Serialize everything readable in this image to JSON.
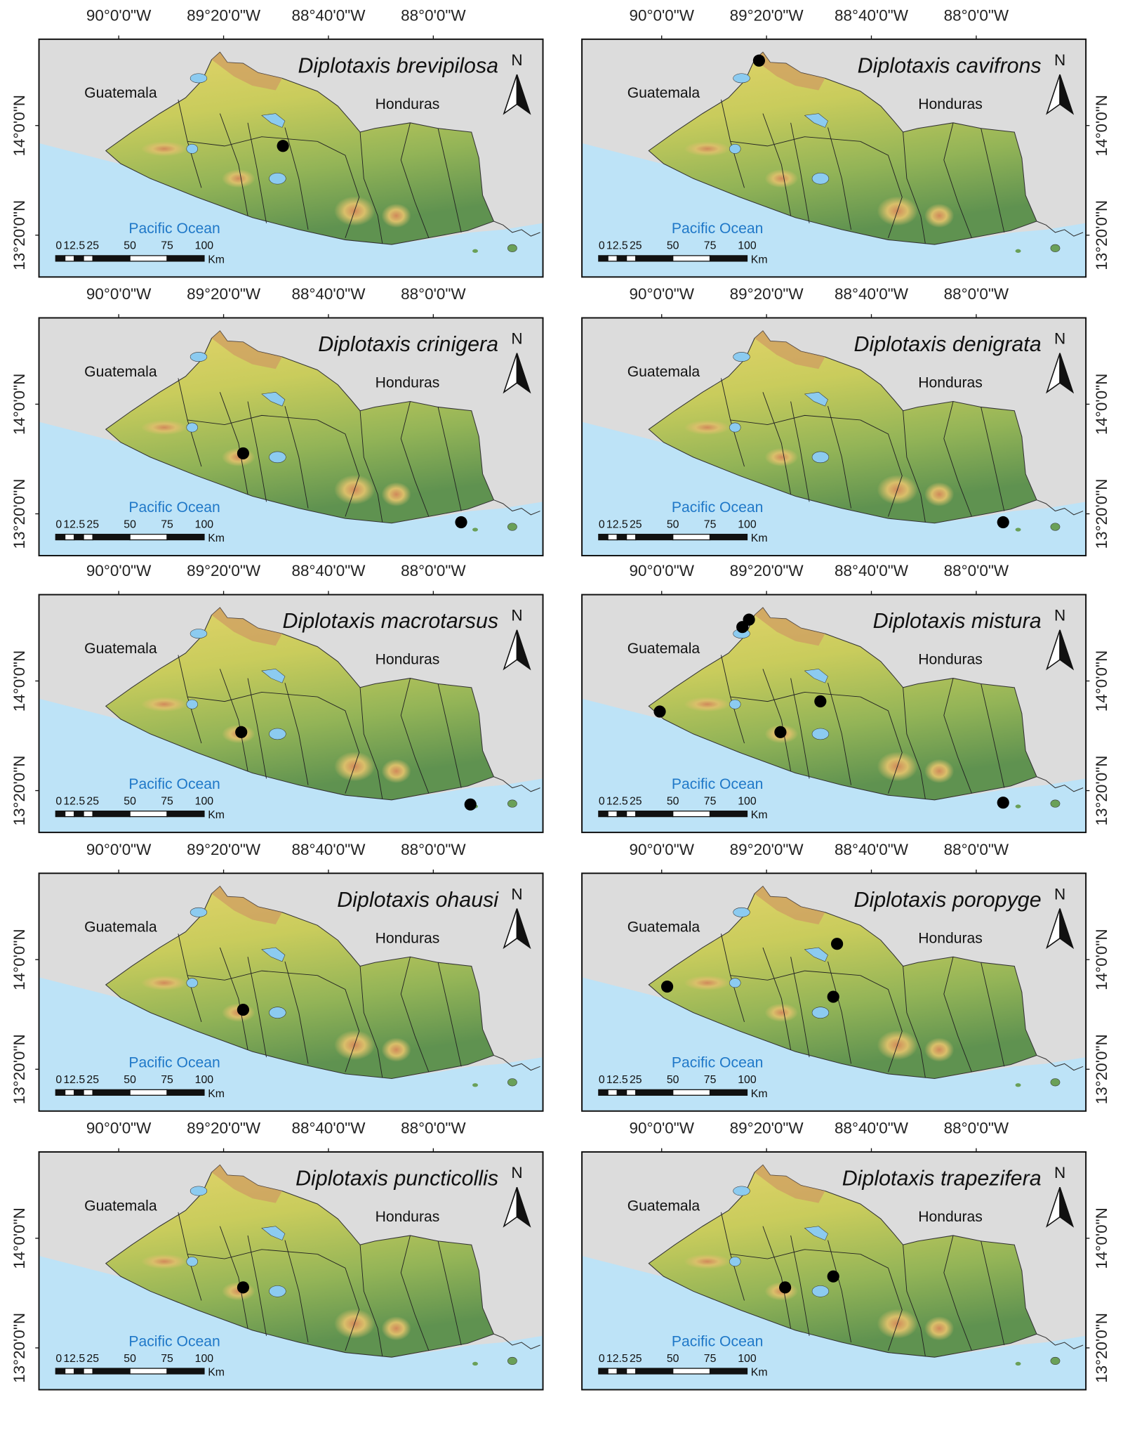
{
  "maps": {
    "lonlim": [
      -90.507,
      -87.303
    ],
    "latlim": [
      13.079,
      14.525
    ],
    "lon_ticks": [
      {
        "value": -90,
        "label": "90°0'0\"W"
      },
      {
        "value": -89.3333,
        "label": "89°20'0\"W"
      },
      {
        "value": -88.6667,
        "label": "88°40'0\"W"
      },
      {
        "value": -88,
        "label": "88°0'0\"W"
      }
    ],
    "lat_ticks": [
      {
        "value": 14,
        "label": "14°0'0\"N"
      },
      {
        "value": 13.3333,
        "label": "13°20'0\"N"
      }
    ],
    "scale_bar": {
      "values": [
        0,
        12.5,
        25,
        50,
        75,
        100
      ],
      "unit": "Km"
    },
    "north": "N",
    "labels": {
      "guatemala": "Guatemala",
      "honduras": "Honduras",
      "ocean": "Pacific Ocean"
    },
    "panels": [
      {
        "title": "Diplotaxis brevipilosa",
        "points": [
          {
            "lon": -88.956,
            "lat": 13.876
          }
        ]
      },
      {
        "title": "Diplotaxis cavifrons",
        "points": [
          {
            "lon": -89.381,
            "lat": 14.395
          }
        ]
      },
      {
        "title": "Diplotaxis crinigera",
        "points": [
          {
            "lon": -89.209,
            "lat": 13.701
          },
          {
            "lon": -87.823,
            "lat": 13.282
          }
        ]
      },
      {
        "title": "Diplotaxis denigrata",
        "points": [
          {
            "lon": -87.829,
            "lat": 13.282
          }
        ]
      },
      {
        "title": "Diplotaxis macrotarsus",
        "points": [
          {
            "lon": -89.221,
            "lat": 13.689
          },
          {
            "lon": -87.764,
            "lat": 13.249
          }
        ]
      },
      {
        "title": "Diplotaxis mistura",
        "points": [
          {
            "lon": -89.445,
            "lat": 14.373
          },
          {
            "lon": -89.487,
            "lat": 14.328
          },
          {
            "lon": -90.012,
            "lat": 13.814
          },
          {
            "lon": -88.991,
            "lat": 13.876
          },
          {
            "lon": -89.245,
            "lat": 13.689
          },
          {
            "lon": -87.829,
            "lat": 13.26
          }
        ]
      },
      {
        "title": "Diplotaxis ohausi",
        "points": [
          {
            "lon": -89.209,
            "lat": 13.695
          }
        ]
      },
      {
        "title": "Diplotaxis poropyge",
        "points": [
          {
            "lon": -88.885,
            "lat": 14.096
          },
          {
            "lon": -89.965,
            "lat": 13.836
          },
          {
            "lon": -88.909,
            "lat": 13.774
          }
        ]
      },
      {
        "title": "Diplotaxis puncticollis",
        "points": [
          {
            "lon": -89.209,
            "lat": 13.701
          }
        ]
      },
      {
        "title": "Diplotaxis trapezifera",
        "points": [
          {
            "lon": -89.215,
            "lat": 13.701
          },
          {
            "lon": -88.909,
            "lat": 13.768
          }
        ]
      }
    ]
  }
}
